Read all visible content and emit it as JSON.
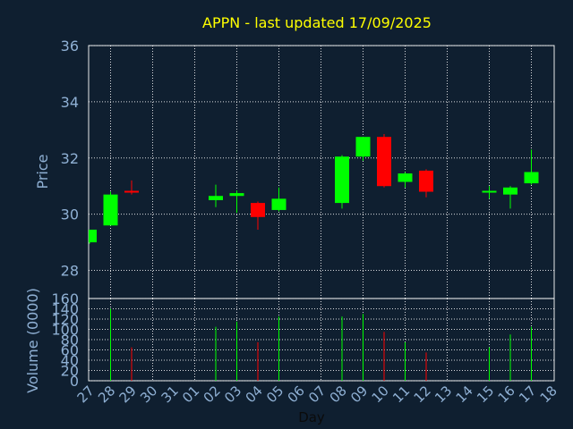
{
  "chart_data": {
    "type": "candlestick",
    "title": "APPN - last updated 17/09/2025",
    "xlabel": "Day",
    "price_ylabel": "Price",
    "volume_ylabel": "Volume (0000)",
    "price_ylim": [
      27,
      36
    ],
    "price_yticks": [
      "28",
      "30",
      "32",
      "34",
      "36"
    ],
    "volume_ylim": [
      0,
      160
    ],
    "volume_yticks": [
      "0",
      "20",
      "40",
      "60",
      "80",
      "100",
      "120",
      "140",
      "160"
    ],
    "x_tick_labels": [
      "27",
      "28",
      "29",
      "30",
      "31",
      "01",
      "02",
      "03",
      "04",
      "05",
      "06",
      "07",
      "08",
      "09",
      "10",
      "11",
      "12",
      "13",
      "14",
      "15",
      "16",
      "17",
      "18"
    ],
    "up_color": "#00ff00",
    "down_color": "#ff0000",
    "grid": true,
    "candles": [
      {
        "day": "27",
        "open": 29.0,
        "high": 29.45,
        "low": 28.95,
        "close": 29.45,
        "volume": 0
      },
      {
        "day": "28",
        "open": 29.6,
        "high": 30.8,
        "low": 29.6,
        "close": 30.7,
        "volume": 140
      },
      {
        "day": "29",
        "open": 30.8,
        "high": 31.2,
        "low": 30.7,
        "close": 30.75,
        "volume": 65
      },
      {
        "day": "02",
        "open": 30.5,
        "high": 31.05,
        "low": 30.25,
        "close": 30.65,
        "volume": 105
      },
      {
        "day": "03",
        "open": 30.65,
        "high": 30.85,
        "low": 30.05,
        "close": 30.75,
        "volume": 115
      },
      {
        "day": "04",
        "open": 30.4,
        "high": 30.45,
        "low": 29.45,
        "close": 29.9,
        "volume": 75
      },
      {
        "day": "05",
        "open": 30.15,
        "high": 30.95,
        "low": 30.1,
        "close": 30.55,
        "volume": 125
      },
      {
        "day": "08",
        "open": 30.4,
        "high": 32.1,
        "low": 30.2,
        "close": 32.05,
        "volume": 125
      },
      {
        "day": "09",
        "open": 32.05,
        "high": 32.75,
        "low": 31.9,
        "close": 32.75,
        "volume": 130
      },
      {
        "day": "10",
        "open": 32.75,
        "high": 32.85,
        "low": 30.95,
        "close": 31.0,
        "volume": 95
      },
      {
        "day": "11",
        "open": 31.15,
        "high": 31.5,
        "low": 30.95,
        "close": 31.45,
        "volume": 75
      },
      {
        "day": "12",
        "open": 31.55,
        "high": 31.6,
        "low": 30.6,
        "close": 30.8,
        "volume": 55
      },
      {
        "day": "15",
        "open": 30.75,
        "high": 31.0,
        "low": 30.55,
        "close": 30.8,
        "volume": 65
      },
      {
        "day": "16",
        "open": 30.7,
        "high": 31.0,
        "low": 30.2,
        "close": 30.95,
        "volume": 90
      },
      {
        "day": "17",
        "open": 31.1,
        "high": 32.3,
        "low": 31.05,
        "close": 31.5,
        "volume": 105
      }
    ]
  }
}
